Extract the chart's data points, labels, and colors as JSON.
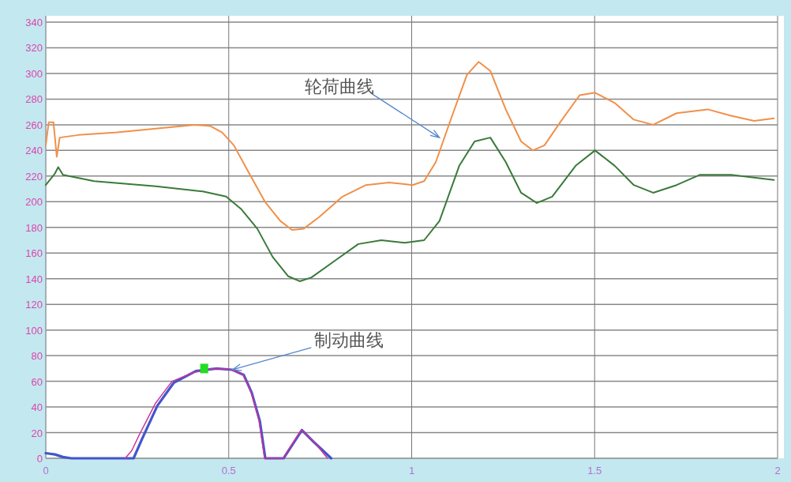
{
  "chart_data": {
    "type": "line",
    "xlim": [
      0,
      2
    ],
    "ylim": [
      0,
      340
    ],
    "xticks": [
      0,
      0.5,
      1,
      1.5,
      2
    ],
    "yticks": [
      0,
      20,
      40,
      60,
      80,
      100,
      120,
      140,
      160,
      180,
      200,
      220,
      240,
      260,
      280,
      300,
      320,
      340
    ],
    "grid": true,
    "annotations": [
      {
        "text": "轮荷曲线",
        "x": 1.076,
        "y": 250
      },
      {
        "text": "制动曲线",
        "x": 0.51,
        "y": 69
      }
    ],
    "series": [
      {
        "color": "#f0904a",
        "x": [
          0,
          0.008,
          0.021,
          0.03,
          0.038,
          0.089,
          0.195,
          0.301,
          0.408,
          0.45,
          0.482,
          0.514,
          0.556,
          0.599,
          0.641,
          0.673,
          0.705,
          0.747,
          0.811,
          0.875,
          0.938,
          1.002,
          1.034,
          1.066,
          1.108,
          1.151,
          1.183,
          1.215,
          1.257,
          1.299,
          1.331,
          1.363,
          1.406,
          1.459,
          1.501,
          1.555,
          1.607,
          1.66,
          1.724,
          1.809,
          1.873,
          1.936,
          1.99
        ],
        "values": [
          244,
          262,
          262,
          235,
          250,
          252,
          254,
          257,
          260,
          259,
          254,
          244,
          222,
          200,
          185,
          178,
          179,
          188,
          204,
          213,
          215,
          213,
          216,
          231,
          265,
          299,
          309,
          302,
          272,
          247,
          240,
          244,
          262,
          283,
          285,
          277,
          264,
          260,
          269,
          272,
          267,
          263,
          265
        ]
      },
      {
        "color": "#3a7a3a",
        "x": [
          0,
          0.025,
          0.034,
          0.047,
          0.132,
          0.301,
          0.429,
          0.493,
          0.535,
          0.578,
          0.62,
          0.662,
          0.694,
          0.726,
          0.79,
          0.854,
          0.917,
          0.981,
          1.034,
          1.076,
          1.13,
          1.172,
          1.215,
          1.257,
          1.299,
          1.342,
          1.384,
          1.448,
          1.501,
          1.555,
          1.607,
          1.66,
          1.724,
          1.788,
          1.873,
          1.99
        ],
        "values": [
          213,
          222,
          227,
          221,
          216,
          212,
          208,
          204,
          194,
          179,
          157,
          142,
          138,
          141,
          154,
          167,
          170,
          168,
          170,
          185,
          228,
          247,
          250,
          231,
          207,
          199,
          204,
          228,
          240,
          228,
          213,
          207,
          213,
          221,
          221,
          217
        ]
      },
      {
        "color": "#4455cc",
        "x": [
          0,
          0.025,
          0.047,
          0.07,
          0.1,
          0.2,
          0.227,
          0.24,
          0.263,
          0.305,
          0.35,
          0.41,
          0.467,
          0.51,
          0.541,
          0.563,
          0.585,
          0.6,
          0.65,
          0.7,
          0.735,
          0.78
        ],
        "values": [
          4,
          3,
          1,
          0,
          0,
          0,
          0,
          0,
          15,
          41,
          59,
          68,
          70,
          69,
          65,
          51,
          29,
          0,
          0,
          22,
          12,
          0
        ]
      },
      {
        "color": "#cc3399",
        "x": [
          0.217,
          0.235,
          0.255,
          0.3,
          0.345,
          0.405,
          0.465,
          0.508,
          0.54,
          0.562,
          0.583,
          0.598,
          0.648,
          0.698,
          0.73,
          0.77
        ],
        "values": [
          0,
          6,
          18,
          43,
          60,
          67,
          70,
          69,
          65,
          51,
          29,
          0,
          0,
          22,
          14,
          0
        ]
      },
      {
        "type": "scatter",
        "marker": "square",
        "color": "#22dd22",
        "x": [
          0.433
        ],
        "values": [
          70
        ]
      }
    ]
  }
}
